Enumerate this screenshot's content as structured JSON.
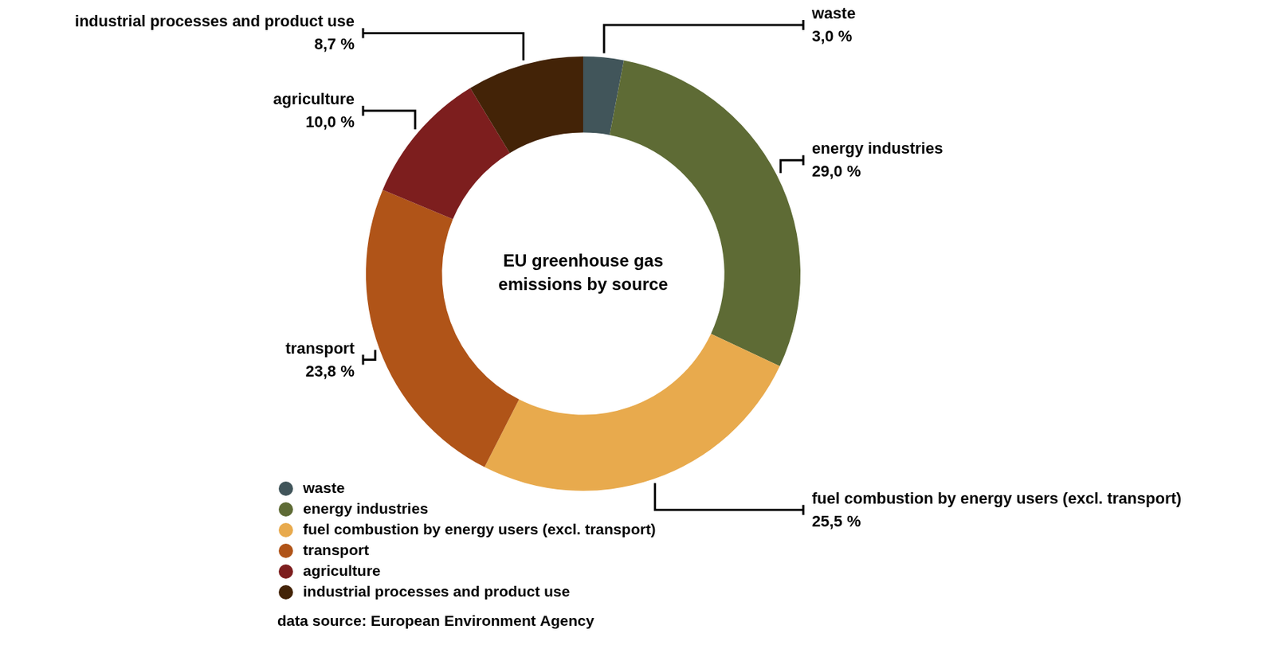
{
  "chart_data": {
    "type": "doughnut",
    "title": "EU greenhouse gas emissions by source",
    "categories": [
      "waste",
      "energy industries",
      "fuel combustion by energy users (excl. transport)",
      "transport",
      "agriculture",
      "industrial processes and product use"
    ],
    "values": [
      3.0,
      29.0,
      25.5,
      23.8,
      10.0,
      8.7
    ],
    "value_labels": [
      "3,0 %",
      "29,0 %",
      "25,5 %",
      "23,8 %",
      "10,0 %",
      "8,7 %"
    ],
    "colors": [
      "#41555a",
      "#5e6b35",
      "#e8aa4d",
      "#b05418",
      "#7d1e1e",
      "#432307"
    ],
    "data_labels": true,
    "legend": "bottom-left",
    "source": "data source: European Environment Agency"
  }
}
